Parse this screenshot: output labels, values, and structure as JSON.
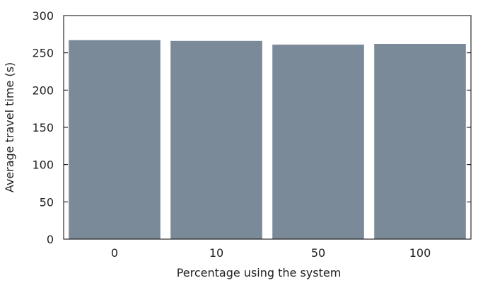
{
  "chart_data": {
    "type": "bar",
    "title": "",
    "xlabel": "Percentage using the system",
    "ylabel": "Average travel time (s)",
    "categories": [
      "0",
      "10",
      "50",
      "100"
    ],
    "values": [
      267,
      266,
      261,
      262
    ],
    "ylim": [
      0,
      300
    ],
    "yticks": [
      0,
      50,
      100,
      150,
      200,
      250,
      300
    ],
    "grid": false,
    "legend": "none",
    "bar_color": "#7a8a99"
  }
}
